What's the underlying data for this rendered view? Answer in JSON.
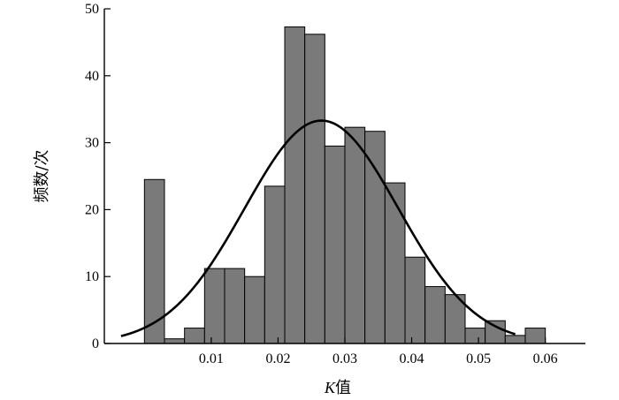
{
  "chart_data": {
    "type": "bar",
    "subtype": "histogram",
    "xlabel": "K值",
    "xlabel_italic_prefix": "K",
    "xlabel_rest": "值",
    "ylabel": "频数/次",
    "xlim": [
      -0.006,
      0.066
    ],
    "ylim": [
      0,
      50
    ],
    "xticks": [
      0.01,
      0.02,
      0.03,
      0.04,
      0.05,
      0.06
    ],
    "xtick_labels": [
      "0.01",
      "0.02",
      "0.03",
      "0.04",
      "0.05",
      "0.06"
    ],
    "yticks": [
      0,
      10,
      20,
      30,
      40,
      50
    ],
    "ytick_labels": [
      "0",
      "10",
      "20",
      "30",
      "40",
      "50"
    ],
    "bin_width": 0.003,
    "bins": [
      {
        "x0": 0.0,
        "value": 24.5
      },
      {
        "x0": 0.003,
        "value": 0.7
      },
      {
        "x0": 0.006,
        "value": 2.3
      },
      {
        "x0": 0.009,
        "value": 11.2
      },
      {
        "x0": 0.012,
        "value": 11.2
      },
      {
        "x0": 0.015,
        "value": 10.0
      },
      {
        "x0": 0.018,
        "value": 23.5
      },
      {
        "x0": 0.021,
        "value": 47.3
      },
      {
        "x0": 0.024,
        "value": 46.2
      },
      {
        "x0": 0.027,
        "value": 29.5
      },
      {
        "x0": 0.03,
        "value": 32.3
      },
      {
        "x0": 0.033,
        "value": 31.7
      },
      {
        "x0": 0.036,
        "value": 24.0
      },
      {
        "x0": 0.039,
        "value": 12.9
      },
      {
        "x0": 0.042,
        "value": 8.5
      },
      {
        "x0": 0.045,
        "value": 7.3
      },
      {
        "x0": 0.048,
        "value": 2.3
      },
      {
        "x0": 0.051,
        "value": 3.4
      },
      {
        "x0": 0.054,
        "value": 1.2
      },
      {
        "x0": 0.057,
        "value": 2.3
      }
    ],
    "fit_curve": {
      "type": "normal",
      "mean": 0.0265,
      "std": 0.0115,
      "peak": 33.3,
      "x_range": [
        -0.0035,
        0.0555
      ]
    },
    "grid": false,
    "legend": "none",
    "colors": {
      "bar_fill": "#7a7a7a",
      "bar_edge": "#000000",
      "curve": "#000000"
    }
  }
}
